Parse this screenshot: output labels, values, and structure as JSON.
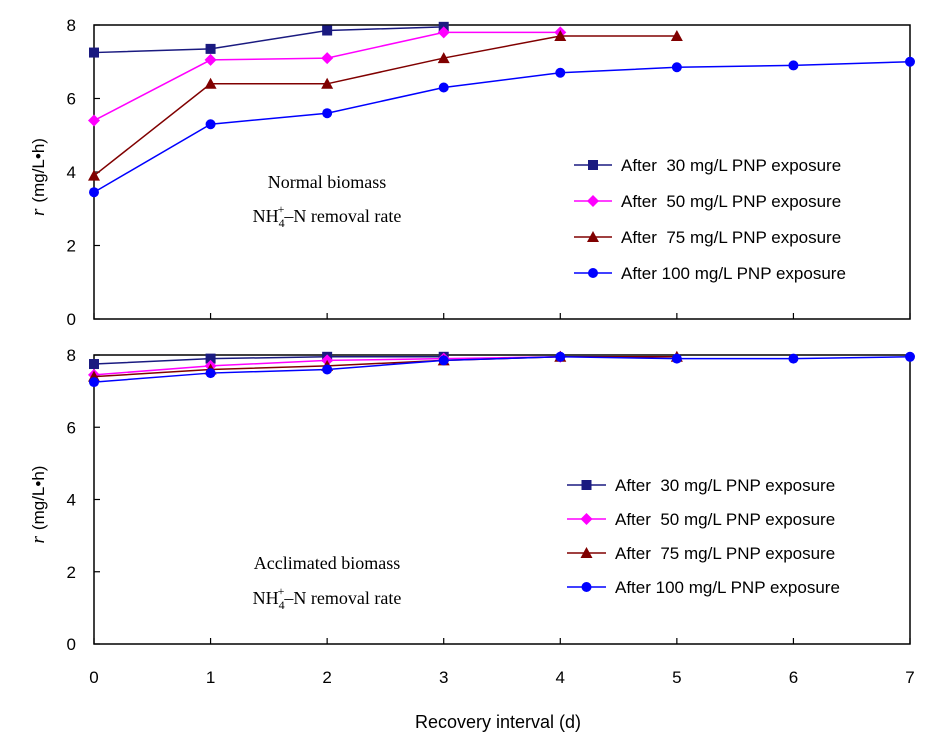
{
  "xlabel": "Recovery interval (d)",
  "x_ticks": [
    "0",
    "1",
    "2",
    "3",
    "4",
    "5",
    "6",
    "7"
  ],
  "chart_data": [
    {
      "type": "line",
      "panel": "top",
      "title": "",
      "annotation_line1": "Normal biomass",
      "annotation_line2_main": "NH",
      "annotation_line2_sub": "4",
      "annotation_line2_sup": "+",
      "annotation_line2_rest": "–N removal rate",
      "ylabel_italic": "r",
      "ylabel_unit": "(mg/L•h)",
      "ylim": [
        0,
        8
      ],
      "y_ticks": [
        "0",
        "2",
        "4",
        "6",
        "8"
      ],
      "xlim": [
        0,
        7
      ],
      "grid": false,
      "legend_position": "right",
      "series": [
        {
          "name": "After  30 mg/L PNP exposure",
          "marker": "square",
          "color": "#1a1a80",
          "x": [
            0,
            1,
            2,
            3
          ],
          "y": [
            7.25,
            7.35,
            7.85,
            7.95
          ]
        },
        {
          "name": "After  50 mg/L PNP exposure",
          "marker": "diamond",
          "color": "#ff00ff",
          "x": [
            0,
            1,
            2,
            3,
            4
          ],
          "y": [
            5.4,
            7.05,
            7.1,
            7.8,
            7.8
          ]
        },
        {
          "name": "After  75 mg/L PNP exposure",
          "marker": "triangle",
          "color": "#800000",
          "x": [
            0,
            1,
            2,
            3,
            4,
            5
          ],
          "y": [
            3.9,
            6.4,
            6.4,
            7.1,
            7.7,
            7.7
          ]
        },
        {
          "name": "After 100 mg/L PNP exposure",
          "marker": "circle",
          "color": "#0000ff",
          "x": [
            0,
            1,
            2,
            3,
            4,
            5,
            6,
            7
          ],
          "y": [
            3.45,
            5.3,
            5.6,
            6.3,
            6.7,
            6.85,
            6.9,
            7.0
          ]
        }
      ]
    },
    {
      "type": "line",
      "panel": "bottom",
      "title": "",
      "annotation_line1": "Acclimated biomass",
      "annotation_line2_main": "NH",
      "annotation_line2_sub": "4",
      "annotation_line2_sup": "+",
      "annotation_line2_rest": "–N removal rate",
      "ylabel_italic": "r",
      "ylabel_unit": "(mg/L•h)",
      "ylim": [
        0,
        8
      ],
      "y_ticks": [
        "0",
        "2",
        "4",
        "6",
        "8"
      ],
      "xlim": [
        0,
        7
      ],
      "grid": false,
      "legend_position": "right",
      "series": [
        {
          "name": "After  30 mg/L PNP exposure",
          "marker": "square",
          "color": "#1a1a80",
          "x": [
            0,
            1,
            2,
            3
          ],
          "y": [
            7.75,
            7.9,
            7.95,
            7.95
          ]
        },
        {
          "name": "After  50 mg/L PNP exposure",
          "marker": "diamond",
          "color": "#ff00ff",
          "x": [
            0,
            1,
            2,
            3,
            4
          ],
          "y": [
            7.45,
            7.7,
            7.85,
            7.9,
            7.95
          ]
        },
        {
          "name": "After  75 mg/L PNP exposure",
          "marker": "triangle",
          "color": "#800000",
          "x": [
            0,
            1,
            2,
            3,
            4,
            5
          ],
          "y": [
            7.4,
            7.6,
            7.7,
            7.85,
            7.95,
            7.95
          ]
        },
        {
          "name": "After 100 mg/L PNP exposure",
          "marker": "circle",
          "color": "#0000ff",
          "x": [
            0,
            1,
            2,
            3,
            4,
            5,
            6,
            7
          ],
          "y": [
            7.25,
            7.5,
            7.6,
            7.85,
            7.95,
            7.9,
            7.9,
            7.95
          ]
        }
      ]
    }
  ]
}
